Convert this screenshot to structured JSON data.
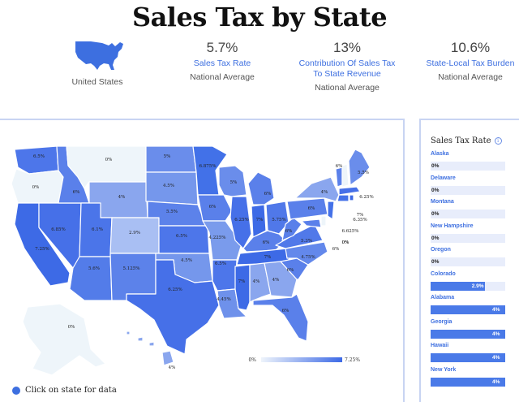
{
  "title": "Sales Tax by State",
  "header": {
    "us_caption": "United States",
    "stats": [
      {
        "value": "5.7%",
        "label": "Sales Tax Rate",
        "sub": "National Average"
      },
      {
        "value": "13%",
        "label": "Contribution Of Sales Tax To State Revenue",
        "sub": "National Average"
      },
      {
        "value": "10.6%",
        "label": "State-Local Tax Burden",
        "sub": "National Average"
      }
    ]
  },
  "colors": {
    "accent": "#3d6fe0",
    "scale_low": "#eef4fb",
    "scale_high": "#3d6ae6"
  },
  "map": {
    "scale_min": "0%",
    "scale_max": "7.25%",
    "click_hint": "Click on state for data",
    "state_labels": [
      {
        "state": "Washington",
        "text": "6.5%"
      },
      {
        "state": "Oregon",
        "text": "0%"
      },
      {
        "state": "California",
        "text": "7.25%"
      },
      {
        "state": "Nevada",
        "text": "6.85%"
      },
      {
        "state": "Idaho",
        "text": "6%"
      },
      {
        "state": "Montana",
        "text": "0%"
      },
      {
        "state": "Wyoming",
        "text": "4%"
      },
      {
        "state": "Utah",
        "text": "6.1%"
      },
      {
        "state": "Arizona",
        "text": "5.6%"
      },
      {
        "state": "Colorado",
        "text": "2.9%"
      },
      {
        "state": "New Mexico",
        "text": "5.125%"
      },
      {
        "state": "North Dakota",
        "text": "5%"
      },
      {
        "state": "South Dakota",
        "text": "4.5%"
      },
      {
        "state": "Nebraska",
        "text": "5.5%"
      },
      {
        "state": "Kansas",
        "text": "6.5%"
      },
      {
        "state": "Oklahoma",
        "text": "4.5%"
      },
      {
        "state": "Texas",
        "text": "6.25%"
      },
      {
        "state": "Minnesota",
        "text": "6.875%"
      },
      {
        "state": "Iowa",
        "text": "6%"
      },
      {
        "state": "Missouri",
        "text": "4.225%"
      },
      {
        "state": "Arkansas",
        "text": "6.5%"
      },
      {
        "state": "Louisiana",
        "text": "4.45%"
      },
      {
        "state": "Wisconsin",
        "text": "5%"
      },
      {
        "state": "Illinois",
        "text": "6.25%"
      },
      {
        "state": "Michigan",
        "text": "6%"
      },
      {
        "state": "Indiana",
        "text": "7%"
      },
      {
        "state": "Ohio",
        "text": "5.75%"
      },
      {
        "state": "Kentucky",
        "text": "6%"
      },
      {
        "state": "Tennessee",
        "text": "7%"
      },
      {
        "state": "Mississippi",
        "text": "7%"
      },
      {
        "state": "Alabama",
        "text": "4%"
      },
      {
        "state": "Georgia",
        "text": "4%"
      },
      {
        "state": "Florida",
        "text": "6%"
      },
      {
        "state": "South Carolina",
        "text": "6%"
      },
      {
        "state": "North Carolina",
        "text": "4.75%"
      },
      {
        "state": "Virginia",
        "text": "5.3%"
      },
      {
        "state": "West Virginia",
        "text": "6%"
      },
      {
        "state": "Pennsylvania",
        "text": "6%"
      },
      {
        "state": "New York",
        "text": "4%"
      },
      {
        "state": "Vermont",
        "text": "6%"
      },
      {
        "state": "New Hampshire",
        "text": "0%"
      },
      {
        "state": "Maine",
        "text": "5.5%"
      },
      {
        "state": "Massachusetts",
        "text": "6.25%"
      },
      {
        "state": "Rhode Island",
        "text": "7%"
      },
      {
        "state": "Connecticut",
        "text": "6.35%"
      },
      {
        "state": "New Jersey",
        "text": "6.625%"
      },
      {
        "state": "Delaware",
        "text": "0%"
      },
      {
        "state": "Maryland",
        "text": "6%"
      },
      {
        "state": "Alaska",
        "text": "0%"
      },
      {
        "state": "Hawaii",
        "text": "4%"
      }
    ]
  },
  "sidebar": {
    "title": "Sales Tax Rate",
    "items": [
      {
        "name": "Alaska",
        "value": "0%",
        "rate": 0
      },
      {
        "name": "Delaware",
        "value": "0%",
        "rate": 0
      },
      {
        "name": "Montana",
        "value": "0%",
        "rate": 0
      },
      {
        "name": "New Hampshire",
        "value": "0%",
        "rate": 0
      },
      {
        "name": "Oregon",
        "value": "0%",
        "rate": 0
      },
      {
        "name": "Colorado",
        "value": "2.9%",
        "rate": 2.9
      },
      {
        "name": "Alabama",
        "value": "4%",
        "rate": 4
      },
      {
        "name": "Georgia",
        "value": "4%",
        "rate": 4
      },
      {
        "name": "Hawaii",
        "value": "4%",
        "rate": 4
      },
      {
        "name": "New York",
        "value": "4%",
        "rate": 4
      }
    ]
  }
}
